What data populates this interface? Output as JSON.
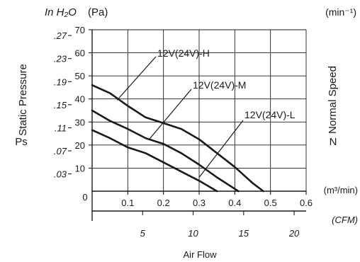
{
  "chart_data": {
    "type": "line",
    "title": "",
    "xlabel": "Air Flow",
    "x_unit_label": "(m³/min)",
    "x_secondary_unit_label": "(CFM)",
    "ylabel": "Static Pressure",
    "ylabel_symbol": "Ps",
    "y_unit_label": "(Pa)",
    "y_secondary_unit_label": "In H₂O",
    "y2_label": "Normal Speed",
    "y2_label_symbol": "N",
    "y2_unit_label": "(min⁻¹)",
    "origin_label": "0",
    "xlim": [
      0,
      0.6
    ],
    "ylim": [
      0,
      70
    ],
    "grid": true,
    "x_ticks": [
      "0.1",
      "0.2",
      "0.3",
      "0.4",
      "0.5",
      "0.6"
    ],
    "y_ticks": [
      "10",
      "20",
      "30",
      "40",
      "50",
      "60",
      "70"
    ],
    "y_secondary_ticks": [
      {
        "value": 7.5,
        "label": ".03"
      },
      {
        "value": 17.5,
        "label": ".07"
      },
      {
        "value": 27.5,
        "label": ".11"
      },
      {
        "value": 37.5,
        "label": ".15"
      },
      {
        "value": 47.5,
        "label": ".19"
      },
      {
        "value": 57.5,
        "label": ".23"
      },
      {
        "value": 67.5,
        "label": ".27"
      }
    ],
    "x_secondary_ticks": [
      {
        "value": 5,
        "label": "5"
      },
      {
        "value": 10,
        "label": "10"
      },
      {
        "value": 15,
        "label": "15"
      },
      {
        "value": 20,
        "label": "20"
      }
    ],
    "series": [
      {
        "name": "12V(24V)-H",
        "x": [
          0,
          0.05,
          0.1,
          0.15,
          0.2,
          0.25,
          0.3,
          0.35,
          0.4,
          0.45,
          0.48
        ],
        "y": [
          46,
          42.5,
          37,
          32,
          29.5,
          27,
          22.5,
          16.5,
          10.5,
          3.5,
          0
        ]
      },
      {
        "name": "12V(24V)-M",
        "x": [
          0,
          0.05,
          0.1,
          0.15,
          0.2,
          0.25,
          0.3,
          0.35,
          0.41
        ],
        "y": [
          35,
          30.5,
          27,
          23,
          20.5,
          16.5,
          11.5,
          6,
          0
        ]
      },
      {
        "name": "12V(24V)-L",
        "x": [
          0,
          0.05,
          0.1,
          0.15,
          0.2,
          0.25,
          0.3,
          0.35
        ],
        "y": [
          26.5,
          23,
          19,
          16.5,
          12.5,
          8.5,
          4.5,
          0
        ]
      }
    ]
  }
}
